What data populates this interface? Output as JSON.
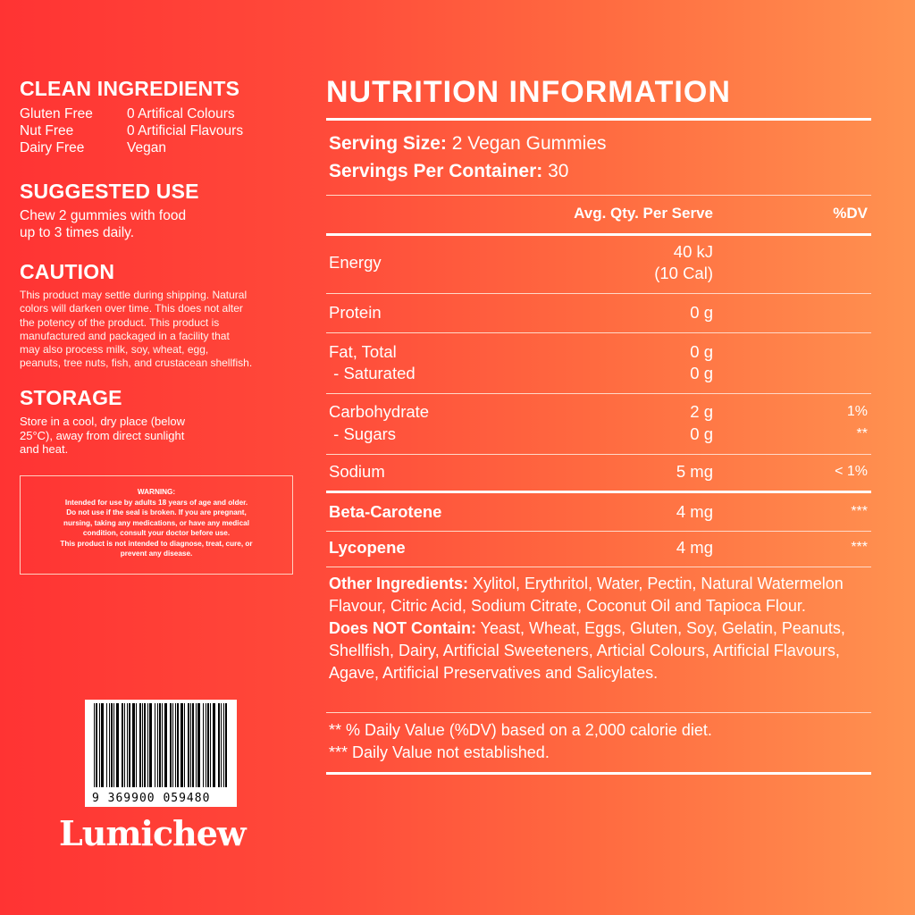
{
  "left": {
    "clean": {
      "title": "CLEAN INGREDIENTS",
      "col1": [
        "Gluten Free",
        "Nut Free",
        "Dairy Free"
      ],
      "col2": [
        "0 Artifical Colours",
        "0 Artificial Flavours",
        "Vegan"
      ]
    },
    "use": {
      "title": "SUGGESTED USE",
      "text": [
        "Chew 2 gummies with food",
        "up to 3 times daily."
      ]
    },
    "caution": {
      "title": "CAUTION",
      "text": [
        "This product may settle during shipping. Natural",
        "colors will darken over time. This does not alter",
        "the potency of the product. This product is",
        "manufactured and packaged in a facility that",
        "may also process milk, soy, wheat, egg,",
        "peanuts, tree nuts, fish, and crustacean shellfish."
      ]
    },
    "storage": {
      "title": "STORAGE",
      "text": [
        "Store in a cool, dry place (below",
        "25°C), away from direct sunlight",
        "and heat."
      ]
    },
    "warning": [
      "WARNING:",
      "Intended for use by adults 18 years of age and older.",
      "Do not use if the seal is broken. If you are pregnant,",
      "nursing, taking any medications, or have any medical",
      "condition, consult your doctor before use.",
      "This product is not intended to diagnose, treat, cure, or",
      "prevent any disease."
    ],
    "barcode": "9 369900 059480",
    "brand": "Lumichew"
  },
  "nutrition": {
    "title": "NUTRITION INFORMATION",
    "serving_label": "Serving Size:",
    "serving_value": "2 Vegan Gummies",
    "per_label": "Servings Per Container:",
    "per_value": "30",
    "col_qty": "Avg. Qty. Per Serve",
    "col_dv": "%DV",
    "energy": {
      "name": "Energy",
      "q1": "40 kJ",
      "q2": "(10 Cal)"
    },
    "protein": {
      "name": "Protein",
      "q": "0 g"
    },
    "fat": {
      "name": "Fat, Total",
      "q": "0 g",
      "sub": " - Saturated",
      "subq": "0 g"
    },
    "carb": {
      "name": "Carbohydrate",
      "q": "2 g",
      "dv": "1%",
      "sub": " - Sugars",
      "subq": "0 g",
      "subdv": "**"
    },
    "sodium": {
      "name": "Sodium",
      "q": "5 mg",
      "dv": "< 1%"
    },
    "beta": {
      "name": "Beta-Carotene",
      "q": "4 mg",
      "dv": "***"
    },
    "lyco": {
      "name": "Lycopene",
      "q": "4 mg",
      "dv": "***"
    },
    "other_label": "Other Ingredients:",
    "other_text": " Xylitol, Erythritol, Water, Pectin, Natural Watermelon Flavour, Citric Acid, Sodium Citrate, Coconut Oil and Tapioca Flour.",
    "dnc_label": "Does NOT Contain:",
    "dnc_text": " Yeast, Wheat, Eggs, Gluten, Soy, Gelatin, Peanuts, Shellfish, Dairy, Artificial Sweeteners, Articial Colours, Artificial Flavours, Agave, Artificial Preservatives and Salicylates.",
    "foot1": "** % Daily Value (%DV) based on a 2,000 calorie diet.",
    "foot2": "*** Daily Value not established."
  }
}
